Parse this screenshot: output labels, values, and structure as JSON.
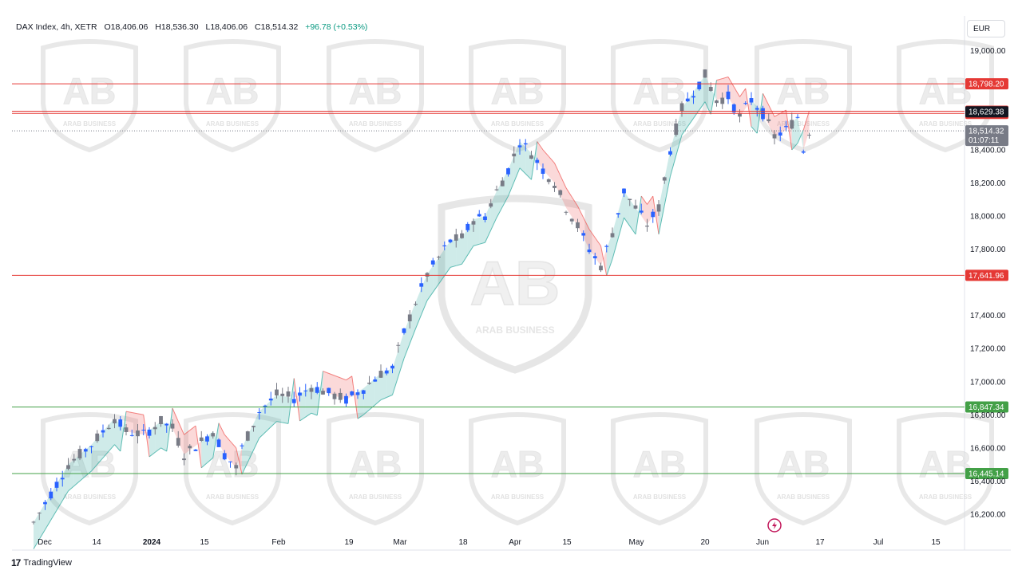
{
  "header": {
    "symbol": "DAX Index, 4h, XETR",
    "open": "O18,406.06",
    "high": "H18,536.30",
    "low": "L18,406.06",
    "close": "C18,514.32",
    "change": "+96.78 (+0.53%)"
  },
  "currency_button": "EUR",
  "footer": {
    "logo": "17",
    "brand": "TradingView"
  },
  "watermark": {
    "brand": "ARAB BUSINESS",
    "logo": "AB"
  },
  "colors": {
    "resistance": "#e53935",
    "support": "#43a047",
    "up_candle": "#787b86",
    "down_candle": "#2962ff",
    "cloud_green": "#26a69a",
    "cloud_red": "#ef5350",
    "last_price_bg": "#787b86",
    "current_bg": "#131722"
  },
  "chart_data": {
    "type": "candlestick",
    "title": "DAX Index, 4h, XETR",
    "ylim": [
      16100,
      19100
    ],
    "y_ticks": [
      "19,000.00",
      "18,400.00",
      "18,200.00",
      "18,000.00",
      "17,800.00",
      "17,400.00",
      "17,200.00",
      "17,000.00",
      "16,800.00",
      "16,600.00",
      "16,400.00",
      "16,200.00"
    ],
    "x_ticks": [
      {
        "label": "Dec",
        "bold": false
      },
      {
        "label": "14",
        "bold": false
      },
      {
        "label": "2024",
        "bold": true
      },
      {
        "label": "15",
        "bold": false
      },
      {
        "label": "Feb",
        "bold": false
      },
      {
        "label": "19",
        "bold": false
      },
      {
        "label": "Mar",
        "bold": false
      },
      {
        "label": "18",
        "bold": false
      },
      {
        "label": "Apr",
        "bold": false
      },
      {
        "label": "15",
        "bold": false
      },
      {
        "label": "May",
        "bold": false
      },
      {
        "label": "20",
        "bold": false
      },
      {
        "label": "Jun",
        "bold": false
      },
      {
        "label": "17",
        "bold": false
      },
      {
        "label": "Jul",
        "bold": false
      },
      {
        "label": "15",
        "bold": false
      }
    ],
    "horizontal_levels": [
      {
        "value": 18798.2,
        "label": "18,798.20",
        "kind": "resistance"
      },
      {
        "value": 18632.84,
        "label": "18,632.84",
        "kind": "resistance"
      },
      {
        "value": 18619.95,
        "label": "18,619.95",
        "kind": "resistance"
      },
      {
        "value": 17641.96,
        "label": "17,641.96",
        "kind": "resistance"
      },
      {
        "value": 16847.34,
        "label": "16,847.34",
        "kind": "support"
      },
      {
        "value": 16445.14,
        "label": "16,445.14",
        "kind": "support"
      }
    ],
    "current_price_label": {
      "value": 18629.38,
      "label": "18,629.38"
    },
    "last_price": {
      "value": 18514.32,
      "label": "18,514.32",
      "countdown": "01:07:11"
    },
    "price_path": [
      [
        0,
        16150
      ],
      [
        6,
        16500
      ],
      [
        10,
        16620
      ],
      [
        14,
        16780
      ],
      [
        16,
        16700
      ],
      [
        19,
        16680
      ],
      [
        22,
        16760
      ],
      [
        24,
        16720
      ],
      [
        26,
        16560
      ],
      [
        29,
        16640
      ],
      [
        31,
        16700
      ],
      [
        33,
        16560
      ],
      [
        35,
        16480
      ],
      [
        36,
        16600
      ],
      [
        39,
        16820
      ],
      [
        42,
        16920
      ],
      [
        45,
        16900
      ],
      [
        48,
        16970
      ],
      [
        51,
        16930
      ],
      [
        54,
        16890
      ],
      [
        57,
        16960
      ],
      [
        60,
        17050
      ],
      [
        62,
        17080
      ],
      [
        64,
        17300
      ],
      [
        66,
        17480
      ],
      [
        68,
        17650
      ],
      [
        70,
        17750
      ],
      [
        72,
        17850
      ],
      [
        74,
        17870
      ],
      [
        76,
        17980
      ],
      [
        78,
        18000
      ],
      [
        80,
        18150
      ],
      [
        82,
        18280
      ],
      [
        84,
        18450
      ],
      [
        86,
        18380
      ],
      [
        88,
        18280
      ],
      [
        90,
        18200
      ],
      [
        92,
        18050
      ],
      [
        94,
        17940
      ],
      [
        96,
        17800
      ],
      [
        98,
        17700
      ],
      [
        100,
        17900
      ],
      [
        102,
        18150
      ],
      [
        104,
        18050
      ],
      [
        106,
        17950
      ],
      [
        108,
        18050
      ],
      [
        110,
        18400
      ],
      [
        112,
        18650
      ],
      [
        114,
        18750
      ],
      [
        116,
        18850
      ],
      [
        118,
        18700
      ],
      [
        120,
        18720
      ],
      [
        122,
        18600
      ],
      [
        124,
        18700
      ],
      [
        126,
        18620
      ],
      [
        128,
        18480
      ],
      [
        130,
        18520
      ],
      [
        132,
        18600
      ],
      [
        133,
        18400
      ],
      [
        134,
        18514
      ]
    ],
    "bars_total": 134
  }
}
